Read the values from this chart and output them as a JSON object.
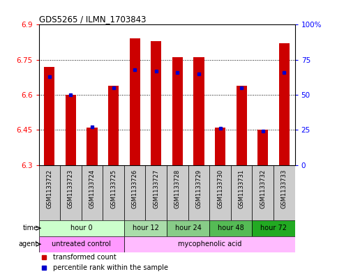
{
  "title": "GDS5265 / ILMN_1703843",
  "samples": [
    "GSM1133722",
    "GSM1133723",
    "GSM1133724",
    "GSM1133725",
    "GSM1133726",
    "GSM1133727",
    "GSM1133728",
    "GSM1133729",
    "GSM1133730",
    "GSM1133731",
    "GSM1133732",
    "GSM1133733"
  ],
  "bar_values": [
    6.72,
    6.6,
    6.46,
    6.64,
    6.84,
    6.83,
    6.76,
    6.76,
    6.46,
    6.64,
    6.45,
    6.82
  ],
  "percentile_values": [
    63,
    50,
    27,
    55,
    68,
    67,
    66,
    65,
    26,
    55,
    24,
    66
  ],
  "ymin": 6.3,
  "ymax": 6.9,
  "yticks": [
    6.3,
    6.45,
    6.6,
    6.75,
    6.9
  ],
  "ytick_labels": [
    "6.3",
    "6.45",
    "6.6",
    "6.75",
    "6.9"
  ],
  "right_yticks": [
    0,
    25,
    50,
    75,
    100
  ],
  "right_ytick_labels": [
    "0",
    "25",
    "50",
    "75",
    "100%"
  ],
  "bar_color": "#cc0000",
  "percentile_color": "#0000cc",
  "bar_bottom": 6.3,
  "time_groups": [
    {
      "label": "hour 0",
      "start": 0,
      "end": 4
    },
    {
      "label": "hour 12",
      "start": 4,
      "end": 6
    },
    {
      "label": "hour 24",
      "start": 6,
      "end": 8
    },
    {
      "label": "hour 48",
      "start": 8,
      "end": 10
    },
    {
      "label": "hour 72",
      "start": 10,
      "end": 12
    }
  ],
  "time_group_colors": {
    "hour 0": "#ccffcc",
    "hour 12": "#aaddaa",
    "hour 24": "#88cc88",
    "hour 48": "#55bb55",
    "hour 72": "#22aa22"
  },
  "agent_groups": [
    {
      "label": "untreated control",
      "start": 0,
      "end": 4
    },
    {
      "label": "mycophenolic acid",
      "start": 4,
      "end": 12
    }
  ],
  "agent_group_colors": {
    "untreated control": "#ff99ff",
    "mycophenolic acid": "#ffbbff"
  },
  "legend_red": "transformed count",
  "legend_blue": "percentile rank within the sample",
  "bg_color": "#ffffff",
  "sample_bg_color": "#cccccc",
  "sample_label_fontsize": 6,
  "bar_width": 0.5
}
